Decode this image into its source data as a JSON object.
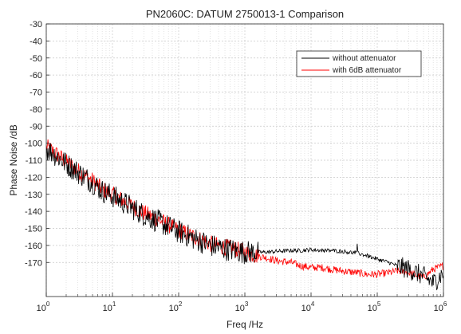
{
  "chart_data": {
    "type": "line",
    "title": "PN2060C: DATUM 2750013-1 Comparison",
    "xlabel": "Freq /Hz",
    "ylabel": "Phase Noise /dB",
    "x_scale": "log",
    "xlim": [
      1,
      1000000
    ],
    "ylim": [
      -190,
      -30
    ],
    "x_ticks": [
      {
        "value": 1,
        "base": "10",
        "exp": "0"
      },
      {
        "value": 10,
        "base": "10",
        "exp": "1"
      },
      {
        "value": 100,
        "base": "10",
        "exp": "2"
      },
      {
        "value": 1000,
        "base": "10",
        "exp": "3"
      },
      {
        "value": 10000,
        "base": "10",
        "exp": "4"
      },
      {
        "value": 100000,
        "base": "10",
        "exp": "5"
      },
      {
        "value": 1000000,
        "base": "10",
        "exp": "6"
      }
    ],
    "y_ticks": [
      "-30",
      "-40",
      "-50",
      "-60",
      "-70",
      "-80",
      "-90",
      "-100",
      "-110",
      "-120",
      "-130",
      "-140",
      "-150",
      "-160",
      "-170"
    ],
    "grid": true,
    "legend": "top-right",
    "series": [
      {
        "name": "without attenuator",
        "color": "#000000",
        "x": [
          1,
          1.5,
          2,
          3,
          5,
          7,
          10,
          15,
          20,
          30,
          50,
          70,
          100,
          150,
          200,
          300,
          500,
          700,
          1000,
          1500,
          2000,
          3000,
          5000,
          7000,
          10000,
          15000,
          20000,
          30000,
          50000,
          70000,
          100000,
          150000,
          200000,
          300000,
          500000,
          700000,
          1000000
        ],
        "y": [
          -103,
          -108,
          -112,
          -117,
          -123,
          -128,
          -131,
          -135,
          -138,
          -142,
          -146,
          -149,
          -152,
          -155,
          -157,
          -160,
          -162,
          -163,
          -164,
          -164,
          -164,
          -163.5,
          -163,
          -163,
          -162.5,
          -163,
          -163,
          -163.5,
          -164.5,
          -166,
          -168,
          -170,
          -172,
          -174,
          -178,
          -182,
          -176
        ]
      },
      {
        "name": "with 6dB attenuator",
        "color": "#ff0000",
        "x": [
          1,
          1.5,
          2,
          3,
          5,
          7,
          10,
          15,
          20,
          30,
          50,
          70,
          100,
          150,
          200,
          300,
          500,
          700,
          1000,
          1500,
          2000,
          3000,
          5000,
          7000,
          10000,
          15000,
          20000,
          30000,
          50000,
          70000,
          100000,
          150000,
          200000,
          300000,
          500000,
          700000,
          1000000
        ],
        "y": [
          -102,
          -107,
          -111,
          -116,
          -122,
          -127,
          -130,
          -134,
          -137,
          -141,
          -145,
          -148,
          -151,
          -154,
          -156,
          -159,
          -161,
          -162,
          -164,
          -166,
          -167,
          -169,
          -170,
          -172,
          -173,
          -173,
          -174,
          -175,
          -176,
          -177,
          -177,
          -176,
          -175,
          -176,
          -179,
          -174,
          -172
        ]
      }
    ]
  }
}
